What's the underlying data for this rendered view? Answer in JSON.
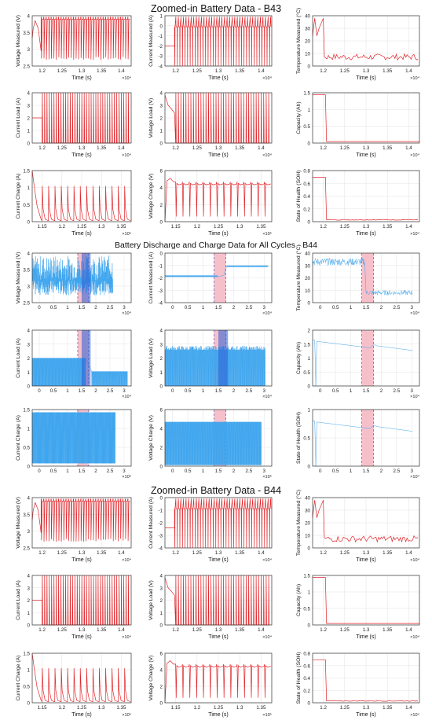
{
  "sections": [
    {
      "title": "Zoomed-in Battery Data - B43"
    },
    {
      "title": "Battery Discharge and Charge Data for All Cycles - B44"
    },
    {
      "title": "Zoomed-in Battery Data - B44"
    }
  ],
  "colors": {
    "zoom_line": "#e0252a",
    "all_line": "#3ea5ee",
    "band_fill": "#f5b5c2",
    "band_dark": "#2a5fd6",
    "dash": "#6b6bc0"
  },
  "chart_data": [
    {
      "panel": "B43-voltage-measured",
      "type": "line",
      "xlabel": "Time (s)",
      "ylabel": "Voltage Measured (V)",
      "xticks": [
        "1.2",
        "1.25",
        "1.3",
        "1.35",
        "1.4"
      ],
      "xmult": "×10⁴",
      "yticks": [
        "2.5",
        "3",
        "3.5",
        "4"
      ],
      "ylim": [
        2.5,
        4.3
      ],
      "series": "red",
      "pattern": "voltage_spikes"
    },
    {
      "panel": "B43-current-measured",
      "type": "line",
      "xlabel": "Time (s)",
      "ylabel": "Current Measured (A)",
      "xticks": [
        "1.2",
        "1.25",
        "1.3",
        "1.35",
        "1.4"
      ],
      "xmult": "×10⁴",
      "yticks": [
        "-4",
        "-3",
        "-2",
        "-1",
        "0",
        "1"
      ],
      "ylim": [
        -4,
        1
      ],
      "pattern": "current_pulses"
    },
    {
      "panel": "B43-temperature",
      "type": "line",
      "xlabel": "Time (s)",
      "ylabel": "Temperature Measured (°C)",
      "xticks": [
        "1.2",
        "1.25",
        "1.3",
        "1.35",
        "1.4"
      ],
      "xmult": "×10⁴",
      "yticks": [
        "0",
        "10",
        "20",
        "30",
        "40"
      ],
      "ylim": [
        0,
        40
      ],
      "pattern": "temp_drop"
    },
    {
      "panel": "B43-current-load",
      "type": "line",
      "xlabel": "Time (s)",
      "ylabel": "Current Load (A)",
      "xticks": [
        "1.2",
        "1.25",
        "1.3",
        "1.35",
        "1.4"
      ],
      "xmult": "×10⁴",
      "yticks": [
        "0",
        "1",
        "2",
        "3",
        "4"
      ],
      "ylim": [
        0,
        4
      ],
      "pattern": "load_pulses"
    },
    {
      "panel": "B43-voltage-load",
      "type": "line",
      "xlabel": "Time (s)",
      "ylabel": "Voltage Load (V)",
      "xticks": [
        "1.2",
        "1.25",
        "1.3",
        "1.35",
        "1.4"
      ],
      "xmult": "×10⁴",
      "yticks": [
        "0",
        "1",
        "2",
        "3",
        "4"
      ],
      "ylim": [
        0,
        4
      ],
      "pattern": "vload_pulses"
    },
    {
      "panel": "B43-capacity",
      "type": "line",
      "xlabel": "Time (s)",
      "ylabel": "Capacity (Ah)",
      "xticks": [
        "1.2",
        "1.25",
        "1.3",
        "1.35",
        "1.4"
      ],
      "xmult": "×10⁴",
      "yticks": [
        "0",
        "0.5",
        "1",
        "1.5"
      ],
      "ylim": [
        0,
        1.55
      ],
      "pattern": "step_cap"
    },
    {
      "panel": "B43-current-charge",
      "type": "line",
      "xlabel": "Time (s)",
      "ylabel": "Current Charge (A)",
      "xticks": [
        "1.15",
        "1.2",
        "1.25",
        "1.3",
        "1.35"
      ],
      "xmult": "×10⁵",
      "yticks": [
        "0",
        "0.5",
        "1",
        "1.5"
      ],
      "ylim": [
        0,
        1.5
      ],
      "pattern": "charge_decay"
    },
    {
      "panel": "B43-voltage-charge",
      "type": "line",
      "xlabel": "Time (s)",
      "ylabel": "Voltage Charge (V)",
      "xticks": [
        "1.15",
        "1.2",
        "1.25",
        "1.3",
        "1.35"
      ],
      "xmult": "×10⁵",
      "yticks": [
        "0",
        "2",
        "4",
        "6"
      ],
      "ylim": [
        0,
        6
      ],
      "pattern": "vcharge"
    },
    {
      "panel": "B43-soh",
      "type": "line",
      "xlabel": "Time (s)",
      "ylabel": "State of Health (SOH)",
      "xticks": [
        "1.2",
        "1.25",
        "1.3",
        "1.35",
        "1.4"
      ],
      "xmult": "×10⁴",
      "yticks": [
        "0",
        "0.2",
        "0.4",
        "0.6",
        "0.8"
      ],
      "ylim": [
        0,
        0.8
      ],
      "pattern": "step_soh"
    },
    {
      "panel": "B44-all-voltage-measured",
      "type": "line",
      "xlabel": "",
      "ylabel": "Voltage Measured (V)",
      "xticks": [
        "0",
        "0.5",
        "1",
        "1.5",
        "2",
        "2.5",
        "3"
      ],
      "xmult": "×10⁴",
      "yticks": [
        "2.5",
        "3",
        "3.5",
        "4"
      ],
      "ylim": [
        2.5,
        4.2
      ],
      "pattern": "all_voltage"
    },
    {
      "panel": "B44-all-current-measured",
      "type": "line",
      "xlabel": "",
      "ylabel": "Current Measured (A)",
      "xticks": [
        "0",
        "0.5",
        "1",
        "1.5",
        "2",
        "2.5",
        "3"
      ],
      "xmult": "×10⁴",
      "yticks": [
        "-4",
        "-3",
        "-2",
        "-1",
        "0"
      ],
      "ylim": [
        -4,
        0
      ],
      "pattern": "all_current"
    },
    {
      "panel": "B44-all-temperature",
      "type": "line",
      "xlabel": "",
      "ylabel": "Temperature Measured (°C)",
      "xticks": [
        "0",
        "0.5",
        "1",
        "1.5",
        "2",
        "2.5",
        "3"
      ],
      "xmult": "×10⁴",
      "yticks": [
        "0",
        "10",
        "20",
        "30",
        "40"
      ],
      "ylim": [
        0,
        40
      ],
      "pattern": "all_temp"
    },
    {
      "panel": "B44-all-current-load",
      "type": "line",
      "xlabel": "",
      "ylabel": "Current Load (A)",
      "xticks": [
        "0",
        "0.5",
        "1",
        "1.5",
        "2",
        "2.5",
        "3"
      ],
      "xmult": "×10⁴",
      "yticks": [
        "0",
        "1",
        "2",
        "3",
        "4"
      ],
      "ylim": [
        0,
        4
      ],
      "pattern": "all_load"
    },
    {
      "panel": "B44-all-voltage-load",
      "type": "line",
      "xlabel": "",
      "ylabel": "Voltage Load (V)",
      "xticks": [
        "0",
        "0.5",
        "1",
        "1.5",
        "2",
        "2.5",
        "3"
      ],
      "xmult": "×10⁴",
      "yticks": [
        "0",
        "1",
        "2",
        "3",
        "4"
      ],
      "ylim": [
        0,
        4
      ],
      "pattern": "all_vload"
    },
    {
      "panel": "B44-all-capacity",
      "type": "line",
      "xlabel": "",
      "ylabel": "Capacity (Ah)",
      "xticks": [
        "0",
        "0.5",
        "1",
        "1.5",
        "2",
        "2.5",
        "3"
      ],
      "xmult": "×10⁴",
      "yticks": [
        "0",
        "0.5",
        "1",
        "1.5",
        "2"
      ],
      "ylim": [
        0,
        2
      ],
      "pattern": "all_cap"
    },
    {
      "panel": "B44-all-current-charge",
      "type": "line",
      "xlabel": "",
      "ylabel": "Current Charge (A)",
      "xticks": [
        "0",
        "0.5",
        "1",
        "1.5",
        "2",
        "2.5",
        "3"
      ],
      "xmult": "×10⁵",
      "yticks": [
        "0",
        "0.5",
        "1",
        "1.5"
      ],
      "ylim": [
        0,
        1.5
      ],
      "pattern": "all_charge"
    },
    {
      "panel": "B44-all-voltage-charge",
      "type": "line",
      "xlabel": "",
      "ylabel": "Voltage Charge (V)",
      "xticks": [
        "0",
        "0.5",
        "1",
        "1.5",
        "2",
        "2.5",
        "3"
      ],
      "xmult": "×10⁵",
      "yticks": [
        "0",
        "2",
        "4",
        "6"
      ],
      "ylim": [
        0,
        6
      ],
      "pattern": "all_vcharge"
    },
    {
      "panel": "B44-all-soh",
      "type": "line",
      "xlabel": "",
      "ylabel": "State of Health (SOH)",
      "xticks": [
        "0",
        "0.5",
        "1",
        "1.5",
        "2",
        "2.5",
        "3"
      ],
      "xmult": "×10⁴",
      "yticks": [
        "0",
        "0.5",
        "1"
      ],
      "ylim": [
        0,
        1
      ],
      "pattern": "all_soh"
    },
    {
      "panel": "B44-voltage-measured",
      "type": "line",
      "xlabel": "Time (s)",
      "ylabel": "Voltage Measured (V)",
      "xticks": [
        "1.2",
        "1.25",
        "1.3",
        "1.35",
        "1.4"
      ],
      "xmult": "×10⁴",
      "yticks": [
        "2.5",
        "3",
        "3.5",
        "4"
      ],
      "ylim": [
        2.5,
        4.3
      ],
      "pattern": "voltage_spikes"
    },
    {
      "panel": "B44-current-measured",
      "type": "line",
      "xlabel": "Time (s)",
      "ylabel": "Current Measured (A)",
      "xticks": [
        "1.2",
        "1.25",
        "1.3",
        "1.35",
        "1.4"
      ],
      "xmult": "×10⁴",
      "yticks": [
        "-4",
        "-3",
        "-2",
        "-1",
        "0"
      ],
      "ylim": [
        -4,
        0
      ],
      "pattern": "current_pulses"
    },
    {
      "panel": "B44-temperature",
      "type": "line",
      "xlabel": "Time (s)",
      "ylabel": "Temperature Measured (°C)",
      "xticks": [
        "1.2",
        "1.25",
        "1.3",
        "1.35",
        "1.4"
      ],
      "xmult": "×10⁴",
      "yticks": [
        "0",
        "10",
        "20",
        "30",
        "40"
      ],
      "ylim": [
        0,
        40
      ],
      "pattern": "temp_drop"
    },
    {
      "panel": "B44-current-load",
      "type": "line",
      "xlabel": "Time (s)",
      "ylabel": "Current Load (A)",
      "xticks": [
        "1.2",
        "1.25",
        "1.3",
        "1.35",
        "1.4"
      ],
      "xmult": "×10⁴",
      "yticks": [
        "0",
        "1",
        "2",
        "3",
        "4"
      ],
      "ylim": [
        0,
        4
      ],
      "pattern": "load_pulses"
    },
    {
      "panel": "B44-voltage-load",
      "type": "line",
      "xlabel": "Time (s)",
      "ylabel": "Voltage Load (V)",
      "xticks": [
        "1.2",
        "1.25",
        "1.3",
        "1.35",
        "1.4"
      ],
      "xmult": "×10⁴",
      "yticks": [
        "0",
        "1",
        "2",
        "3",
        "4"
      ],
      "ylim": [
        0,
        4
      ],
      "pattern": "vload_pulses"
    },
    {
      "panel": "B44-capacity",
      "type": "line",
      "xlabel": "Time (s)",
      "ylabel": "Capacity (Ah)",
      "xticks": [
        "1.2",
        "1.25",
        "1.3",
        "1.35",
        "1.4"
      ],
      "xmult": "×10⁴",
      "yticks": [
        "0",
        "0.5",
        "1",
        "1.5"
      ],
      "ylim": [
        0,
        1.5
      ],
      "pattern": "step_cap"
    },
    {
      "panel": "B44-current-charge",
      "type": "line",
      "xlabel": "Time (s)",
      "ylabel": "Current Charge (A)",
      "xticks": [
        "1.15",
        "1.2",
        "1.25",
        "1.3",
        "1.35"
      ],
      "xmult": "×10⁵",
      "yticks": [
        "0",
        "0.5",
        "1",
        "1.5"
      ],
      "ylim": [
        0,
        1.5
      ],
      "pattern": "charge_decay"
    },
    {
      "panel": "B44-voltage-charge",
      "type": "line",
      "xlabel": "Time (s)",
      "ylabel": "Voltage Charge (V)",
      "xticks": [
        "1.15",
        "1.2",
        "1.25",
        "1.3",
        "1.35"
      ],
      "xmult": "×10⁵",
      "yticks": [
        "0",
        "2",
        "4",
        "6"
      ],
      "ylim": [
        0,
        6
      ],
      "pattern": "vcharge"
    },
    {
      "panel": "B44-soh",
      "type": "line",
      "xlabel": "Time (s)",
      "ylabel": "State of Health (SOH)",
      "xticks": [
        "1.2",
        "1.25",
        "1.3",
        "1.35",
        "1.4"
      ],
      "xmult": "×10⁴",
      "yticks": [
        "0",
        "0.2",
        "0.4",
        "0.6",
        "0.8"
      ],
      "ylim": [
        0,
        0.8
      ],
      "pattern": "step_soh"
    }
  ]
}
